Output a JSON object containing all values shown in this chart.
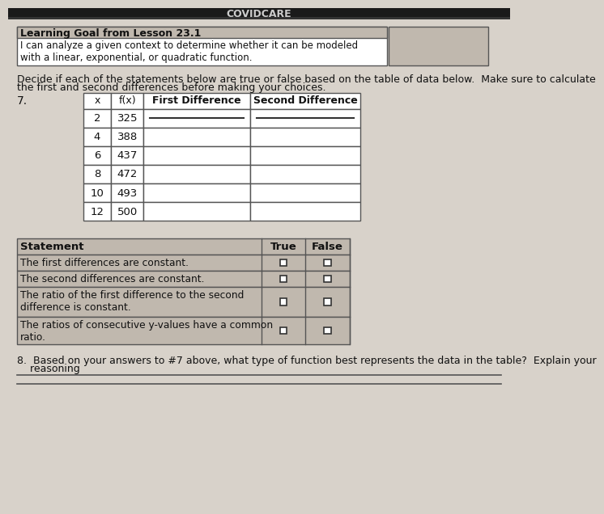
{
  "page_bg": "#d8d2ca",
  "white": "#ffffff",
  "header_bg": "#c0b8ae",
  "border_color": "#555555",
  "text_color": "#111111",
  "dark_bar": "#1a1a1a",
  "top_bar_text": "COVIDCARE",
  "learning_goal_title": "Learning Goal from Lesson 23.1",
  "learning_goal_text": "I can analyze a given context to determine whether it can be modeled\nwith a linear, exponential, or quadratic function.",
  "intro_line1": "Decide if each of the statements below are true or false based on the table of data below.  Make sure to calculate",
  "intro_line2": "the first and second differences before making your choices.",
  "problem_number": "7.",
  "table_headers": [
    "x",
    "f(x)",
    "First Difference",
    "Second Difference"
  ],
  "table_data": [
    [
      "2",
      "325"
    ],
    [
      "4",
      "388"
    ],
    [
      "6",
      "437"
    ],
    [
      "8",
      "472"
    ],
    [
      "10",
      "493"
    ],
    [
      "12",
      "500"
    ]
  ],
  "stmt_header": "Statement",
  "stmt_true": "True",
  "stmt_false": "False",
  "statements": [
    "The first differences are constant.",
    "The second differences are constant.",
    "The ratio of the first difference to the second\ndifference is constant.",
    "The ratios of consecutive y-values have a common\nratio."
  ],
  "q8_line1": "8.  Based on your answers to #7 above, what type of function best represents the data in the table?  Explain your",
  "q8_line2": "    reasoning"
}
